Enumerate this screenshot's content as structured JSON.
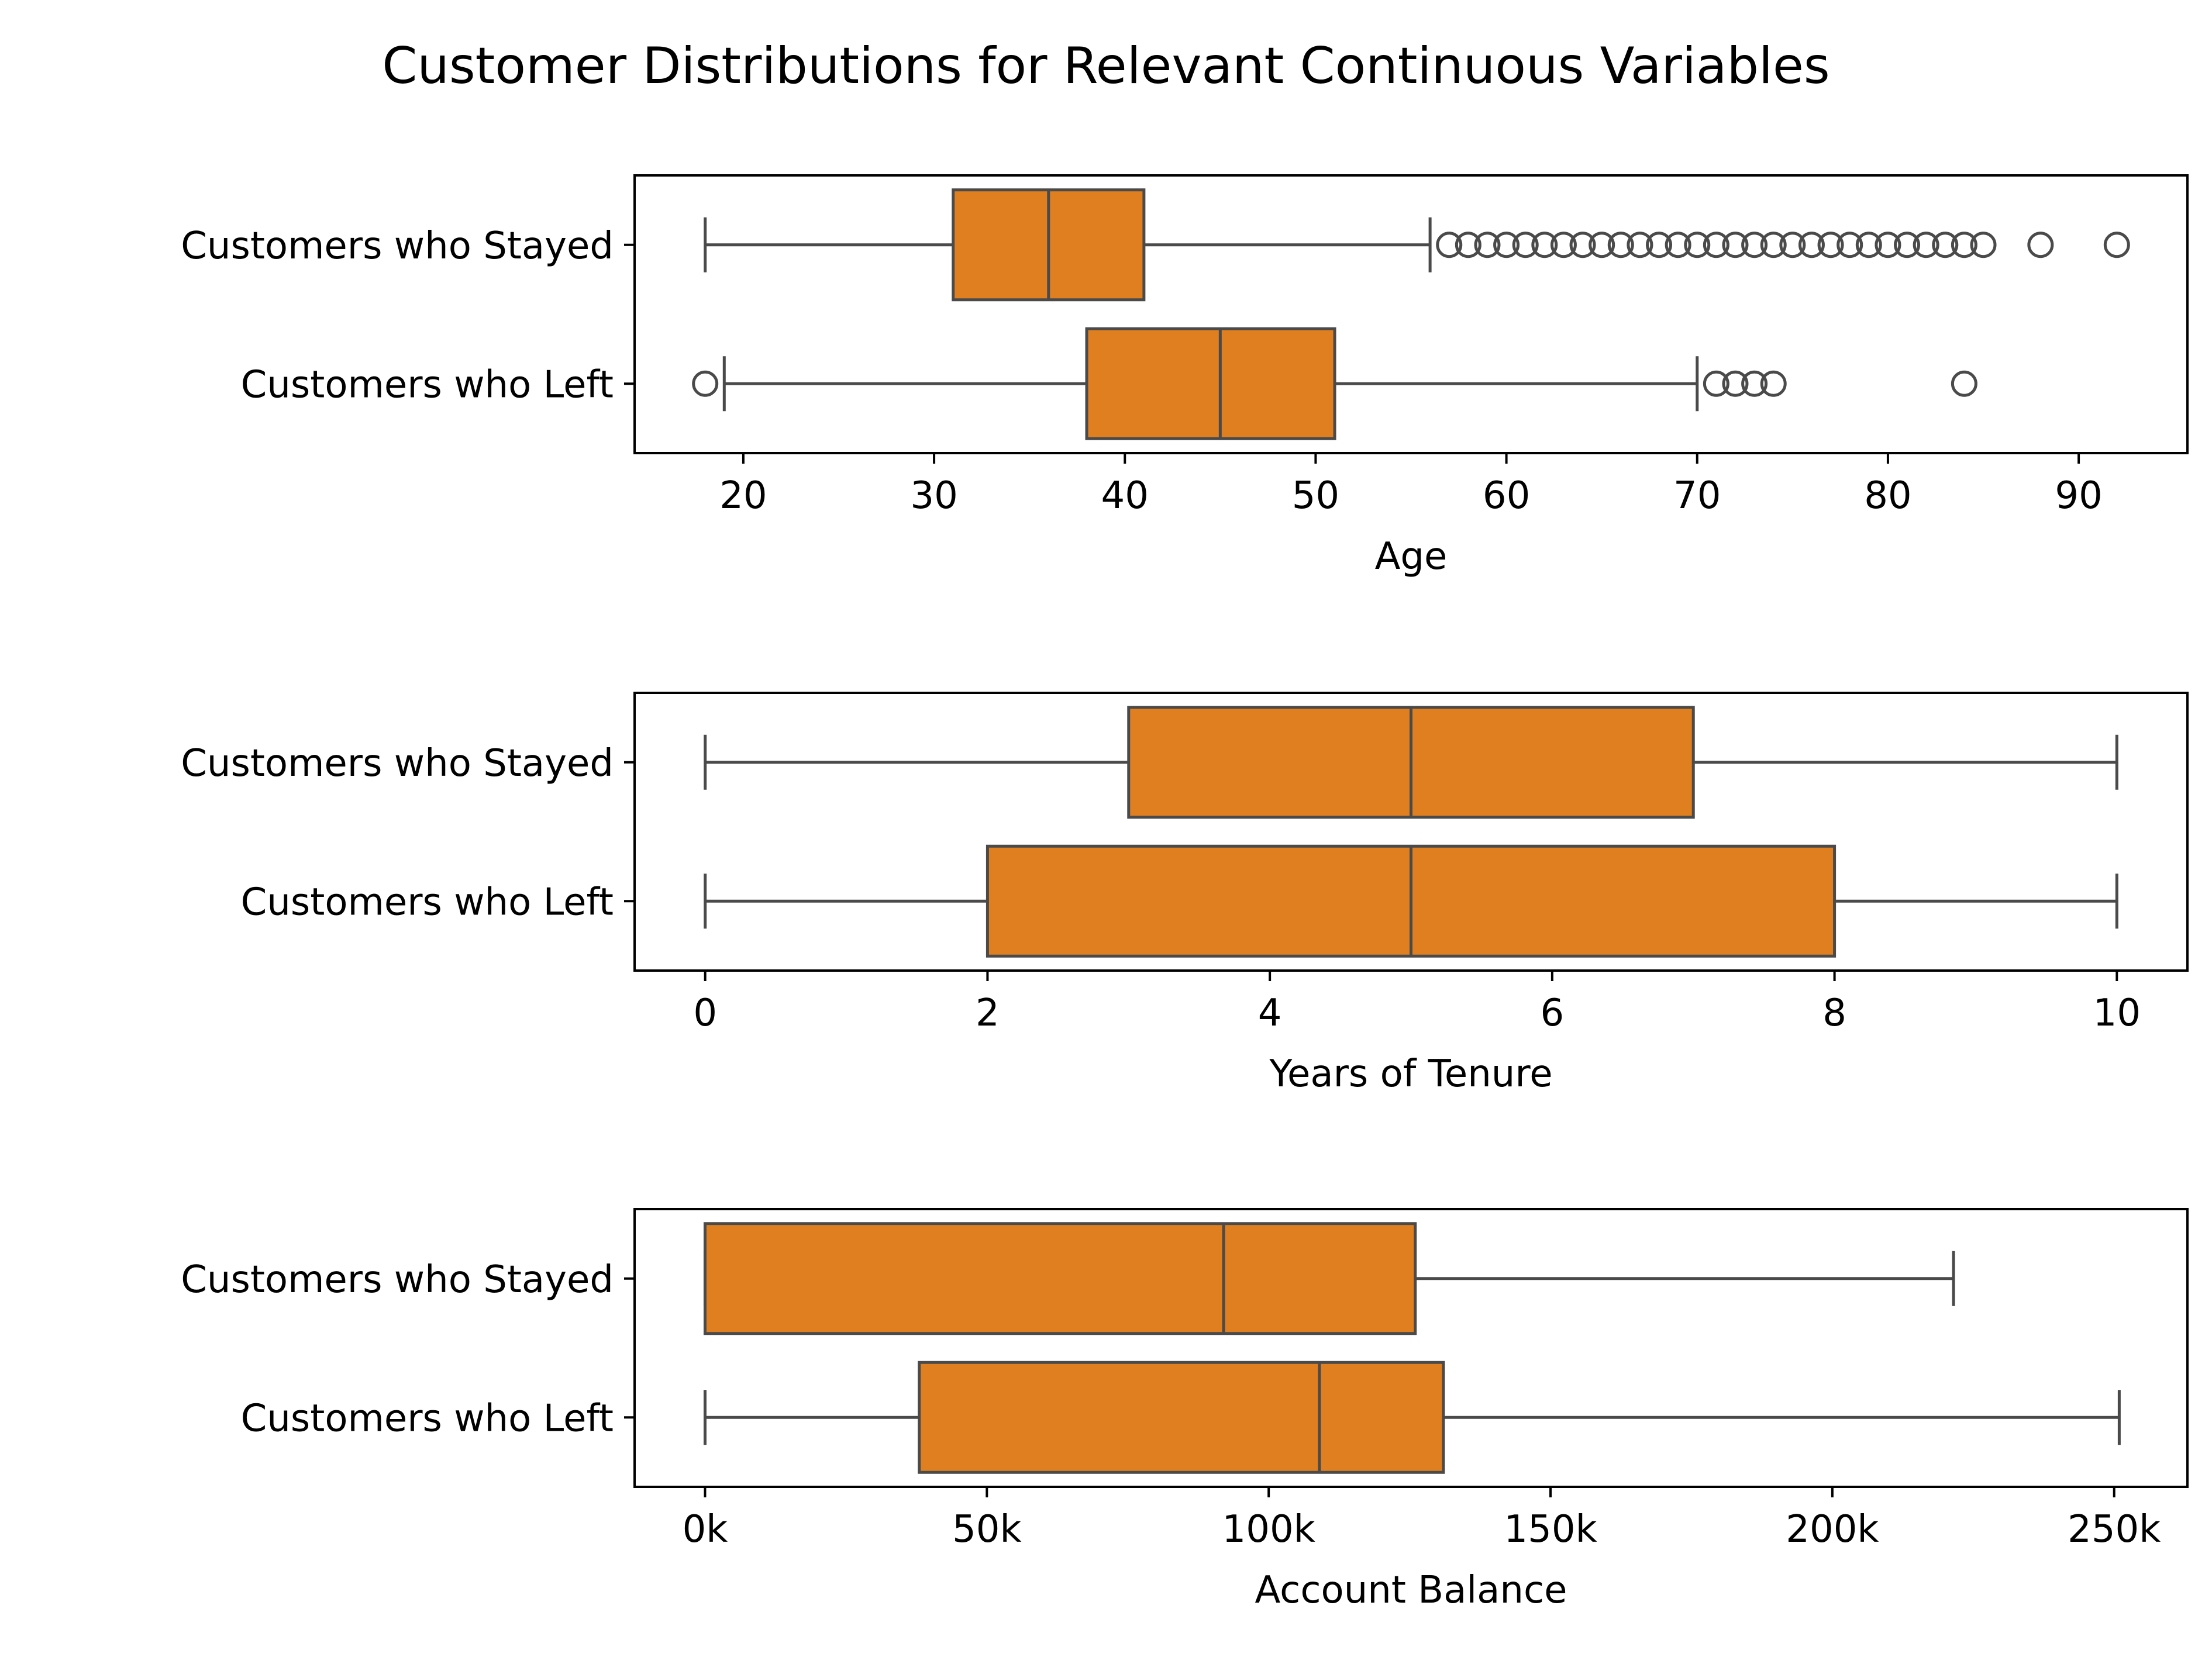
{
  "title": "Customer Distributions for Relevant Continuous Variables",
  "colors": {
    "box": "#df7f20",
    "line": "#4a4a4a",
    "axis": "#000000"
  },
  "chart_data": [
    {
      "type": "box",
      "orientation": "horizontal",
      "xlabel": "Age",
      "xlim": [
        14.3,
        95.7
      ],
      "xticks": [
        20,
        30,
        40,
        50,
        60,
        70,
        80,
        90
      ],
      "tick_labels": [
        "20",
        "30",
        "40",
        "50",
        "60",
        "70",
        "80",
        "90"
      ],
      "categories": [
        "Customers who Stayed",
        "Customers who Left"
      ],
      "boxes": [
        {
          "label": "Customers who Stayed",
          "whisker_low": 18,
          "q1": 31,
          "median": 36,
          "q3": 41,
          "whisker_high": 56,
          "outliers": [
            57,
            58,
            59,
            60,
            61,
            62,
            63,
            64,
            65,
            66,
            67,
            68,
            69,
            70,
            71,
            72,
            73,
            74,
            75,
            76,
            77,
            78,
            79,
            80,
            81,
            82,
            83,
            84,
            85,
            88,
            92
          ]
        },
        {
          "label": "Customers who Left",
          "whisker_low": 19,
          "q1": 38,
          "median": 45,
          "q3": 51,
          "whisker_high": 70,
          "outliers": [
            18,
            71,
            72,
            73,
            74,
            84
          ]
        }
      ]
    },
    {
      "type": "box",
      "orientation": "horizontal",
      "xlabel": "Years of Tenure",
      "xlim": [
        -0.5,
        10.5
      ],
      "xticks": [
        0,
        2,
        4,
        6,
        8,
        10
      ],
      "tick_labels": [
        "0",
        "2",
        "4",
        "6",
        "8",
        "10"
      ],
      "categories": [
        "Customers who Stayed",
        "Customers who Left"
      ],
      "boxes": [
        {
          "label": "Customers who Stayed",
          "whisker_low": 0,
          "q1": 3,
          "median": 5,
          "q3": 7,
          "whisker_high": 10,
          "outliers": []
        },
        {
          "label": "Customers who Left",
          "whisker_low": 0,
          "q1": 2,
          "median": 5,
          "q3": 8,
          "whisker_high": 10,
          "outliers": []
        }
      ]
    },
    {
      "type": "box",
      "orientation": "horizontal",
      "xlabel": "Account Balance",
      "xlim": [
        -12500,
        263000
      ],
      "xticks": [
        0,
        50000,
        100000,
        150000,
        200000,
        250000
      ],
      "tick_labels": [
        "0k",
        "50k",
        "100k",
        "150k",
        "200k",
        "250k"
      ],
      "categories": [
        "Customers who Stayed",
        "Customers who Left"
      ],
      "boxes": [
        {
          "label": "Customers who Stayed",
          "whisker_low": 0,
          "q1": 0,
          "median": 92000,
          "q3": 126000,
          "whisker_high": 221500,
          "outliers": []
        },
        {
          "label": "Customers who Left",
          "whisker_low": 0,
          "q1": 38000,
          "median": 109000,
          "q3": 131000,
          "whisker_high": 250900,
          "outliers": []
        }
      ]
    }
  ]
}
